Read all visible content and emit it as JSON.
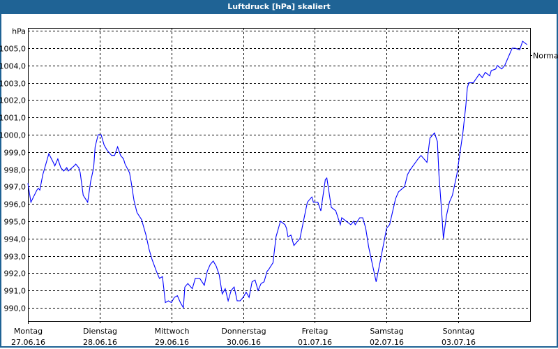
{
  "window": {
    "title": "Luftdruck [hPa] skaliert"
  },
  "colors": {
    "titlebar": "#1f6395",
    "series": "#0000ff",
    "grid": "#000000"
  },
  "chart_data": {
    "type": "line",
    "title": "Luftdruck [hPa] skaliert",
    "ylabel": "hPa",
    "ylim": [
      989.23,
      1006.17
    ],
    "xlim": [
      "2016-06-27T00:00",
      "2016-07-04T00:00"
    ],
    "grid": true,
    "yticks": [
      990,
      991,
      992,
      993,
      994,
      995,
      996,
      997,
      998,
      999,
      1000,
      1001,
      1002,
      1003,
      1004,
      1005
    ],
    "ytick_labels": [
      "990,0",
      "991,0",
      "992,0",
      "993,0",
      "994,0",
      "995,0",
      "996,0",
      "997,0",
      "998,0",
      "999,0",
      "1000,0",
      "1001,0",
      "1002,0",
      "1003,0",
      "1004,0",
      "1005,0"
    ],
    "xticks": [
      {
        "day": "Montag",
        "date": "27.06.16",
        "t": "2016-06-27T00:00"
      },
      {
        "day": "Dienstag",
        "date": "28.06.16",
        "t": "2016-06-28T00:00"
      },
      {
        "day": "Mittwoch",
        "date": "29.06.16",
        "t": "2016-06-29T00:00"
      },
      {
        "day": "Donnerstag",
        "date": "30.06.16",
        "t": "2016-06-30T00:00"
      },
      {
        "day": "Freitag",
        "date": "01.07.16",
        "t": "2016-07-01T00:00"
      },
      {
        "day": "Samstag",
        "date": "02.07.16",
        "t": "2016-07-02T00:00"
      },
      {
        "day": "Sonntag",
        "date": "03.07.16",
        "t": "2016-07-03T00:00"
      }
    ],
    "reference": {
      "label": "Normal",
      "value": 1004.6
    },
    "series": [
      {
        "points": [
          [
            "2016-06-27T00:00",
            997.2
          ],
          [
            "2016-06-27T01:00",
            996.1
          ],
          [
            "2016-06-27T03:00",
            996.8
          ],
          [
            "2016-06-27T03:30",
            996.9
          ],
          [
            "2016-06-27T04:00",
            996.8
          ],
          [
            "2016-06-27T05:00",
            997.7
          ],
          [
            "2016-06-27T05:30",
            998.0
          ],
          [
            "2016-06-27T07:00",
            998.9
          ],
          [
            "2016-06-27T08:30",
            998.4
          ],
          [
            "2016-06-27T09:00",
            998.2
          ],
          [
            "2016-06-27T10:00",
            998.6
          ],
          [
            "2016-06-27T11:00",
            998.1
          ],
          [
            "2016-06-27T12:00",
            997.9
          ],
          [
            "2016-06-27T13:00",
            998.1
          ],
          [
            "2016-06-27T13:30",
            997.9
          ],
          [
            "2016-06-27T15:30",
            998.2
          ],
          [
            "2016-06-27T16:00",
            998.3
          ],
          [
            "2016-06-27T17:00",
            998.1
          ],
          [
            "2016-06-27T17:30",
            997.8
          ],
          [
            "2016-06-27T18:30",
            996.5
          ],
          [
            "2016-06-27T20:00",
            996.1
          ],
          [
            "2016-06-27T21:00",
            997.3
          ],
          [
            "2016-06-27T22:00",
            998.1
          ],
          [
            "2016-06-27T22:30",
            999.3
          ],
          [
            "2016-06-27T23:30",
            1000.0
          ],
          [
            "2016-06-28T00:30",
            1000.0
          ],
          [
            "2016-06-28T01:30",
            999.4
          ],
          [
            "2016-06-28T02:30",
            999.1
          ],
          [
            "2016-06-28T04:00",
            998.8
          ],
          [
            "2016-06-28T05:00",
            998.8
          ],
          [
            "2016-06-28T06:00",
            999.3
          ],
          [
            "2016-06-28T07:00",
            998.8
          ],
          [
            "2016-06-28T08:00",
            998.6
          ],
          [
            "2016-06-28T08:30",
            998.3
          ],
          [
            "2016-06-28T10:00",
            997.8
          ],
          [
            "2016-06-28T10:30",
            997.3
          ],
          [
            "2016-06-28T11:30",
            996.2
          ],
          [
            "2016-06-28T12:30",
            995.5
          ],
          [
            "2016-06-28T14:00",
            995.1
          ],
          [
            "2016-06-28T15:30",
            994.2
          ],
          [
            "2016-06-28T16:30",
            993.4
          ],
          [
            "2016-06-28T17:30",
            992.8
          ],
          [
            "2016-06-28T19:00",
            992.1
          ],
          [
            "2016-06-28T20:00",
            991.7
          ],
          [
            "2016-06-28T21:00",
            991.8
          ],
          [
            "2016-06-28T22:00",
            990.3
          ],
          [
            "2016-06-28T23:00",
            990.4
          ],
          [
            "2016-06-29T00:00",
            990.3
          ],
          [
            "2016-06-29T01:00",
            990.6
          ],
          [
            "2016-06-29T02:00",
            990.7
          ],
          [
            "2016-06-29T03:00",
            990.3
          ],
          [
            "2016-06-29T04:00",
            990.0
          ],
          [
            "2016-06-29T04:30",
            991.2
          ],
          [
            "2016-06-29T05:30",
            991.4
          ],
          [
            "2016-06-29T07:00",
            991.1
          ],
          [
            "2016-06-29T08:00",
            991.7
          ],
          [
            "2016-06-29T09:30",
            991.7
          ],
          [
            "2016-06-29T11:00",
            991.3
          ],
          [
            "2016-06-29T12:00",
            992.1
          ],
          [
            "2016-06-29T13:00",
            992.5
          ],
          [
            "2016-06-29T14:00",
            992.7
          ],
          [
            "2016-06-29T15:00",
            992.4
          ],
          [
            "2016-06-29T16:00",
            991.9
          ],
          [
            "2016-06-29T17:00",
            990.8
          ],
          [
            "2016-06-29T18:00",
            991.1
          ],
          [
            "2016-06-29T19:00",
            990.4
          ],
          [
            "2016-06-29T20:00",
            991.0
          ],
          [
            "2016-06-29T21:00",
            991.2
          ],
          [
            "2016-06-29T22:00",
            990.4
          ],
          [
            "2016-06-29T23:00",
            990.4
          ],
          [
            "2016-06-30T00:00",
            990.6
          ],
          [
            "2016-06-30T01:00",
            990.9
          ],
          [
            "2016-06-30T02:00",
            990.6
          ],
          [
            "2016-06-30T03:00",
            991.5
          ],
          [
            "2016-06-30T04:00",
            991.6
          ],
          [
            "2016-06-30T05:00",
            991.0
          ],
          [
            "2016-06-30T06:00",
            991.4
          ],
          [
            "2016-06-30T07:00",
            991.5
          ],
          [
            "2016-06-30T08:00",
            992.1
          ],
          [
            "2016-06-30T08:30",
            992.2
          ],
          [
            "2016-06-30T10:00",
            992.6
          ],
          [
            "2016-06-30T11:00",
            994.1
          ],
          [
            "2016-06-30T12:30",
            995.0
          ],
          [
            "2016-06-30T14:00",
            994.8
          ],
          [
            "2016-06-30T14:30",
            994.6
          ],
          [
            "2016-06-30T15:00",
            994.1
          ],
          [
            "2016-06-30T16:00",
            994.2
          ],
          [
            "2016-06-30T17:00",
            993.6
          ],
          [
            "2016-06-30T19:00",
            994.0
          ],
          [
            "2016-06-30T21:00",
            995.7
          ],
          [
            "2016-06-30T21:30",
            996.1
          ],
          [
            "2016-06-30T23:00",
            996.4
          ],
          [
            "2016-06-30T23:30",
            996.1
          ],
          [
            "2016-07-01T01:00",
            996.1
          ],
          [
            "2016-07-01T02:00",
            995.6
          ],
          [
            "2016-07-01T03:30",
            997.4
          ],
          [
            "2016-07-01T04:00",
            997.5
          ],
          [
            "2016-07-01T05:30",
            995.8
          ],
          [
            "2016-07-01T07:00",
            995.6
          ],
          [
            "2016-07-01T08:30",
            994.8
          ],
          [
            "2016-07-01T09:00",
            995.2
          ],
          [
            "2016-07-01T10:30",
            995.0
          ],
          [
            "2016-07-01T12:00",
            994.8
          ],
          [
            "2016-07-01T13:00",
            995.0
          ],
          [
            "2016-07-01T13:30",
            994.8
          ],
          [
            "2016-07-01T15:00",
            995.2
          ],
          [
            "2016-07-01T16:00",
            995.2
          ],
          [
            "2016-07-01T17:00",
            994.6
          ],
          [
            "2016-07-01T18:00",
            993.5
          ],
          [
            "2016-07-01T19:30",
            992.3
          ],
          [
            "2016-07-01T20:30",
            991.5
          ],
          [
            "2016-07-01T22:00",
            992.8
          ],
          [
            "2016-07-01T23:00",
            993.7
          ],
          [
            "2016-07-02T00:00",
            994.6
          ],
          [
            "2016-07-02T01:00",
            994.8
          ],
          [
            "2016-07-02T03:00",
            996.3
          ],
          [
            "2016-07-02T04:00",
            996.7
          ],
          [
            "2016-07-02T06:00",
            997.0
          ],
          [
            "2016-07-02T07:00",
            997.7
          ],
          [
            "2016-07-02T08:00",
            998.0
          ],
          [
            "2016-07-02T10:30",
            998.6
          ],
          [
            "2016-07-02T11:30",
            998.8
          ],
          [
            "2016-07-02T13:30",
            998.4
          ],
          [
            "2016-07-02T14:30",
            999.8
          ],
          [
            "2016-07-02T16:00",
            1000.1
          ],
          [
            "2016-07-02T17:00",
            999.6
          ],
          [
            "2016-07-02T17:30",
            997.7
          ],
          [
            "2016-07-02T18:30",
            995.3
          ],
          [
            "2016-07-02T19:00",
            994.0
          ],
          [
            "2016-07-02T20:00",
            995.3
          ],
          [
            "2016-07-02T21:00",
            996.1
          ],
          [
            "2016-07-02T22:00",
            996.5
          ],
          [
            "2016-07-02T23:30",
            997.7
          ],
          [
            "2016-07-03T00:30",
            998.9
          ],
          [
            "2016-07-03T01:30",
            1000.1
          ],
          [
            "2016-07-03T02:30",
            1001.7
          ],
          [
            "2016-07-03T03:00",
            1002.7
          ],
          [
            "2016-07-03T03:30",
            1003.0
          ],
          [
            "2016-07-03T05:00",
            1003.0
          ],
          [
            "2016-07-03T07:00",
            1003.5
          ],
          [
            "2016-07-03T08:00",
            1003.3
          ],
          [
            "2016-07-03T09:00",
            1003.6
          ],
          [
            "2016-07-03T10:30",
            1003.4
          ],
          [
            "2016-07-03T11:00",
            1003.7
          ],
          [
            "2016-07-03T12:30",
            1003.8
          ],
          [
            "2016-07-03T13:00",
            1004.0
          ],
          [
            "2016-07-03T14:30",
            1003.8
          ],
          [
            "2016-07-03T15:30",
            1004.0
          ],
          [
            "2016-07-03T16:30",
            1004.4
          ],
          [
            "2016-07-03T18:00",
            1005.0
          ],
          [
            "2016-07-03T19:00",
            1005.0
          ],
          [
            "2016-07-03T20:30",
            1004.9
          ],
          [
            "2016-07-03T21:30",
            1005.4
          ],
          [
            "2016-07-03T23:00",
            1005.2
          ]
        ]
      }
    ]
  }
}
